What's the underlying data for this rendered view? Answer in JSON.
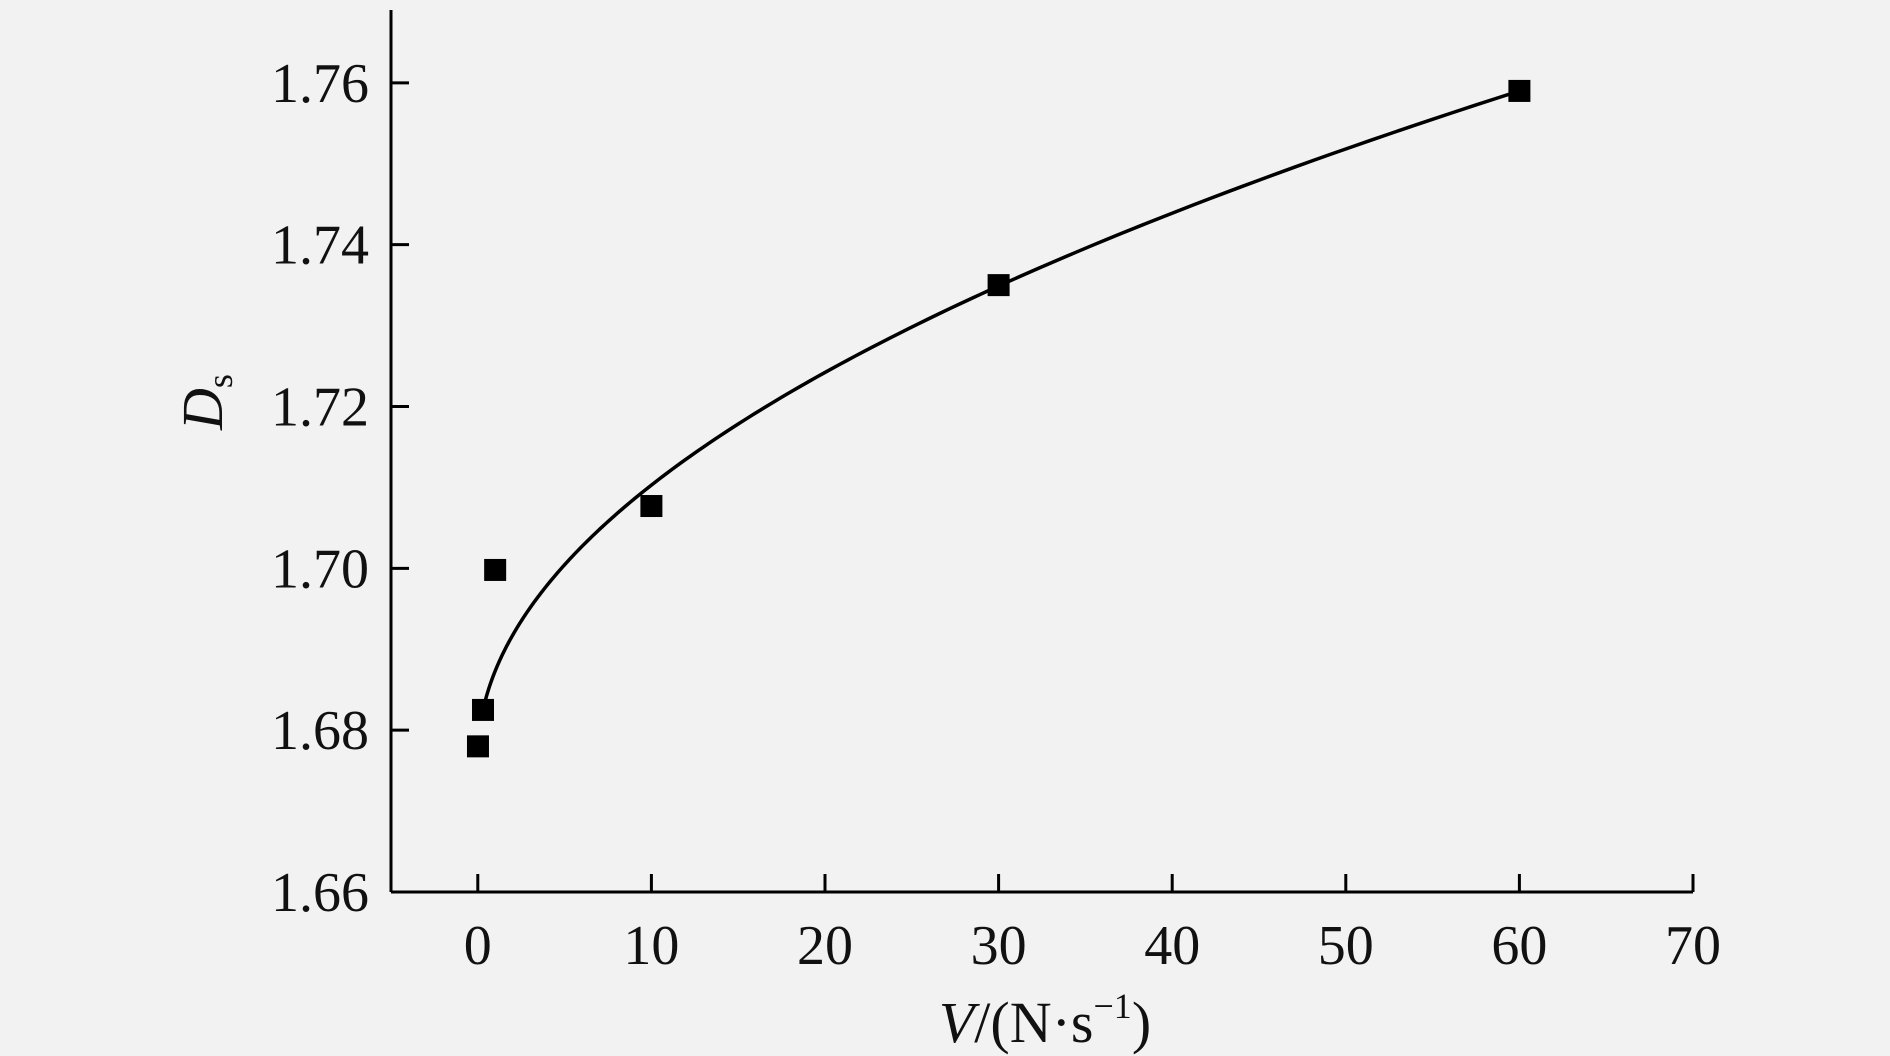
{
  "chart_data": {
    "type": "scatter",
    "xlabel": {
      "italic": "V",
      "rest": "/(N·s",
      "sup": "−1",
      "close": ")"
    },
    "ylabel": {
      "italic": "D",
      "sub": "s"
    },
    "xlim": [
      -5,
      70
    ],
    "ylim": [
      1.66,
      1.769
    ],
    "xticks": [
      0,
      10,
      20,
      30,
      40,
      50,
      60,
      70
    ],
    "yticks": [
      1.66,
      1.68,
      1.7,
      1.72,
      1.74,
      1.76
    ],
    "xtick_labels": [
      "0",
      "10",
      "20",
      "30",
      "40",
      "50",
      "60",
      "70"
    ],
    "ytick_labels": [
      "1.66",
      "1.68",
      "1.70",
      "1.72",
      "1.74",
      "1.76"
    ],
    "grid": false,
    "series": [
      {
        "x": [
          0.01,
          0.3,
          1,
          10,
          30,
          60
        ],
        "y": [
          1.678,
          1.6825,
          1.6998,
          1.7077,
          1.735,
          1.759
        ],
        "marker": "square",
        "color": "#000000"
      }
    ],
    "fit_curve": {
      "type": "power",
      "x": [
        0.3,
        60
      ],
      "y": [
        1.6825,
        1.759
      ],
      "color": "#000000"
    }
  }
}
